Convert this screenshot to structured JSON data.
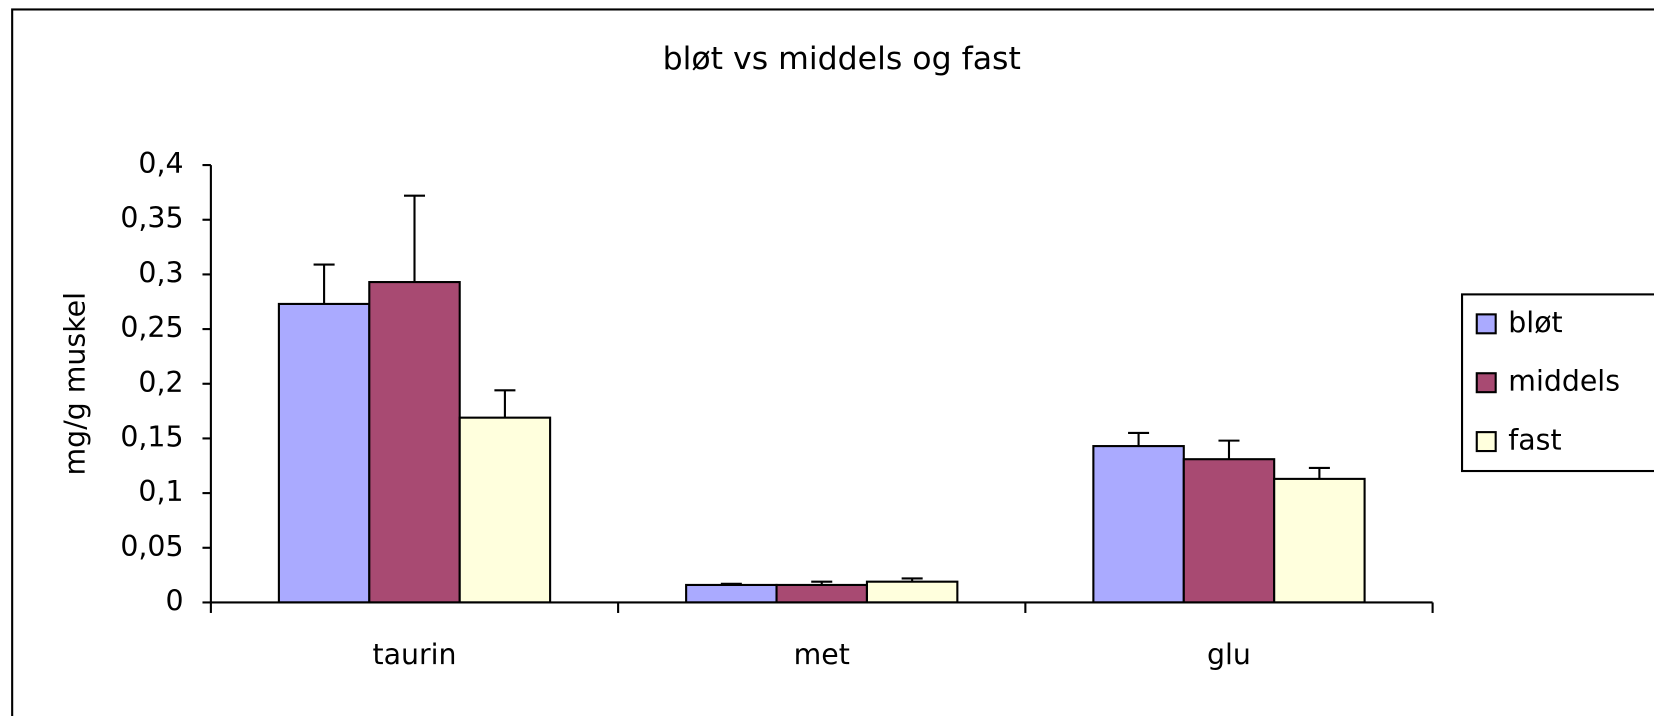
{
  "chart_data": {
    "type": "bar",
    "title": "bløt vs middels og fast",
    "y_label": "mg/g muskel",
    "categories": [
      "taurin",
      "met",
      "glu"
    ],
    "series": [
      {
        "name": "bløt",
        "color": "#aaaaff",
        "values": [
          0.273,
          0.016,
          0.143
        ],
        "errors": [
          0.036,
          0.001,
          0.012
        ]
      },
      {
        "name": "middels",
        "color": "#a84a72",
        "values": [
          0.293,
          0.016,
          0.131
        ],
        "errors": [
          0.079,
          0.003,
          0.017
        ]
      },
      {
        "name": "fast",
        "color": "#ffffdd",
        "values": [
          0.169,
          0.019,
          0.113
        ],
        "errors": [
          0.025,
          0.003,
          0.01
        ]
      }
    ],
    "ylim": [
      0,
      0.4
    ],
    "yticks": [
      0,
      {
        "value": 0.05,
        "label": "0,05"
      },
      {
        "value": 0.1,
        "label": "0,1"
      },
      {
        "value": 0.15,
        "label": "0,15"
      },
      {
        "value": 0.2,
        "label": "0,2"
      },
      {
        "value": 0.25,
        "label": "0,25"
      },
      {
        "value": 0.3,
        "label": "0,3"
      },
      {
        "value": 0.35,
        "label": "0,35"
      },
      {
        "value": 0.4,
        "label": "0,4"
      }
    ],
    "legend": "right"
  }
}
